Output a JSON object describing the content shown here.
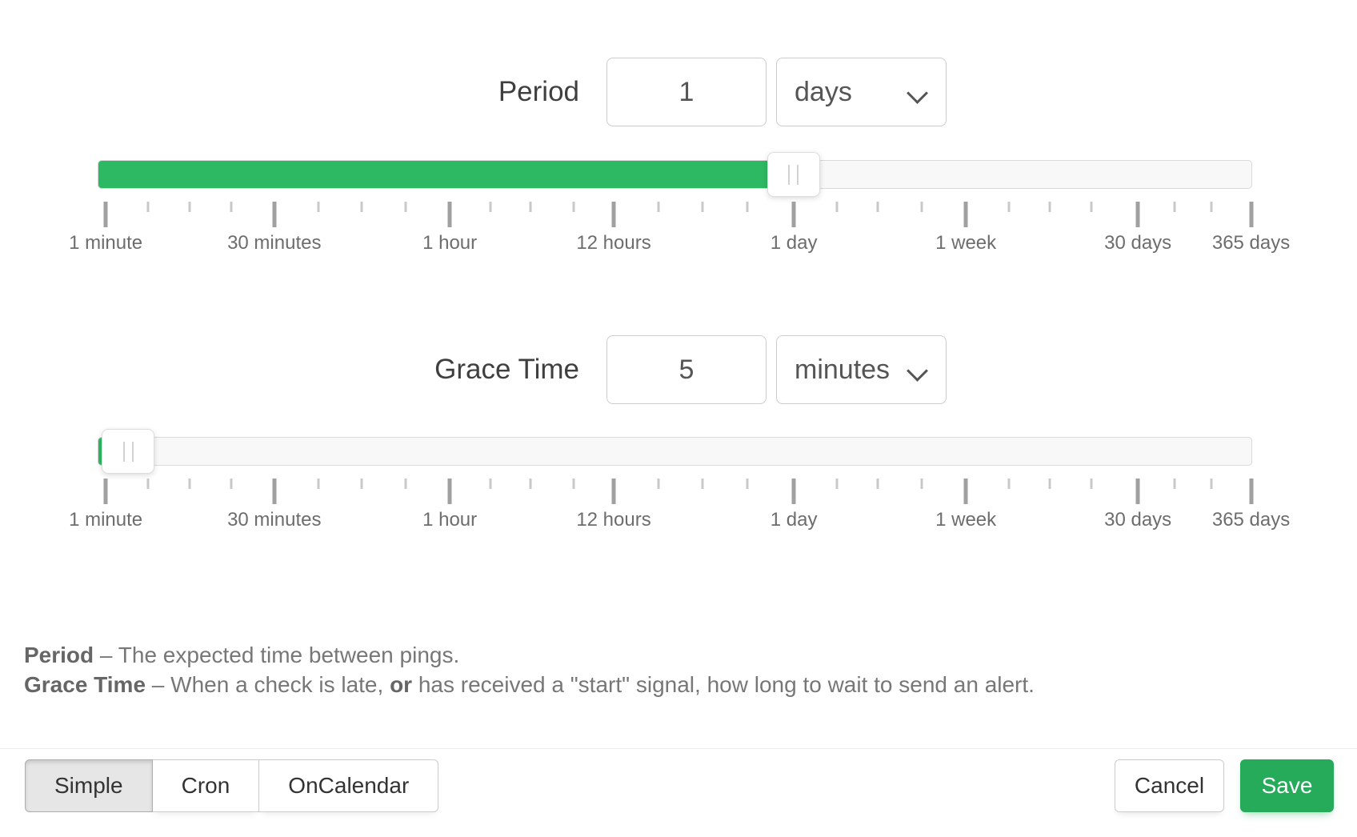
{
  "form": {
    "period": {
      "label": "Period",
      "value": "1",
      "unit": "days",
      "slider_percent": 60.3
    },
    "grace": {
      "label": "Grace Time",
      "value": "5",
      "unit": "minutes",
      "slider_percent": 2.6
    }
  },
  "scale": {
    "ticks": [
      {
        "p": 0.7,
        "big": true,
        "label": "1 minute"
      },
      {
        "p": 4.4
      },
      {
        "p": 8.0
      },
      {
        "p": 11.6
      },
      {
        "p": 15.3,
        "big": true,
        "label": "30 minutes"
      },
      {
        "p": 19.1
      },
      {
        "p": 22.9
      },
      {
        "p": 26.7
      },
      {
        "p": 30.5,
        "big": true,
        "label": "1 hour"
      },
      {
        "p": 34.0
      },
      {
        "p": 37.5
      },
      {
        "p": 41.2
      },
      {
        "p": 44.7,
        "big": true,
        "label": "12 hours"
      },
      {
        "p": 48.6
      },
      {
        "p": 52.4
      },
      {
        "p": 56.3
      },
      {
        "p": 60.3,
        "big": true,
        "label": "1 day"
      },
      {
        "p": 64.0
      },
      {
        "p": 67.6
      },
      {
        "p": 71.4
      },
      {
        "p": 75.2,
        "big": true,
        "label": "1 week"
      },
      {
        "p": 78.9
      },
      {
        "p": 82.5
      },
      {
        "p": 86.1
      },
      {
        "p": 90.1,
        "big": true,
        "label": "30 days"
      },
      {
        "p": 93.3
      },
      {
        "p": 96.5
      },
      {
        "p": 99.9,
        "big": true,
        "label": "365 days"
      }
    ]
  },
  "help": {
    "line1": [
      {
        "t": "Period",
        "b": true
      },
      {
        "t": " – The expected time between pings.",
        "b": false
      }
    ],
    "line2": [
      {
        "t": "Grace Time",
        "b": true
      },
      {
        "t": " – When a check is late, ",
        "b": false
      },
      {
        "t": "or",
        "b": true
      },
      {
        "t": " has received a \"start\" signal, how long to wait to send an alert.",
        "b": false
      }
    ]
  },
  "footer": {
    "modes": [
      {
        "label": "Simple",
        "active": true
      },
      {
        "label": "Cron",
        "active": false
      },
      {
        "label": "OnCalendar",
        "active": false
      }
    ],
    "cancel_label": "Cancel",
    "save_label": "Save"
  },
  "colors": {
    "slider_fill": "#2db863",
    "save_button": "#26ab5b"
  },
  "icons": {
    "select_chevron": "chevron-down",
    "handle_grip": "grip-vertical"
  }
}
